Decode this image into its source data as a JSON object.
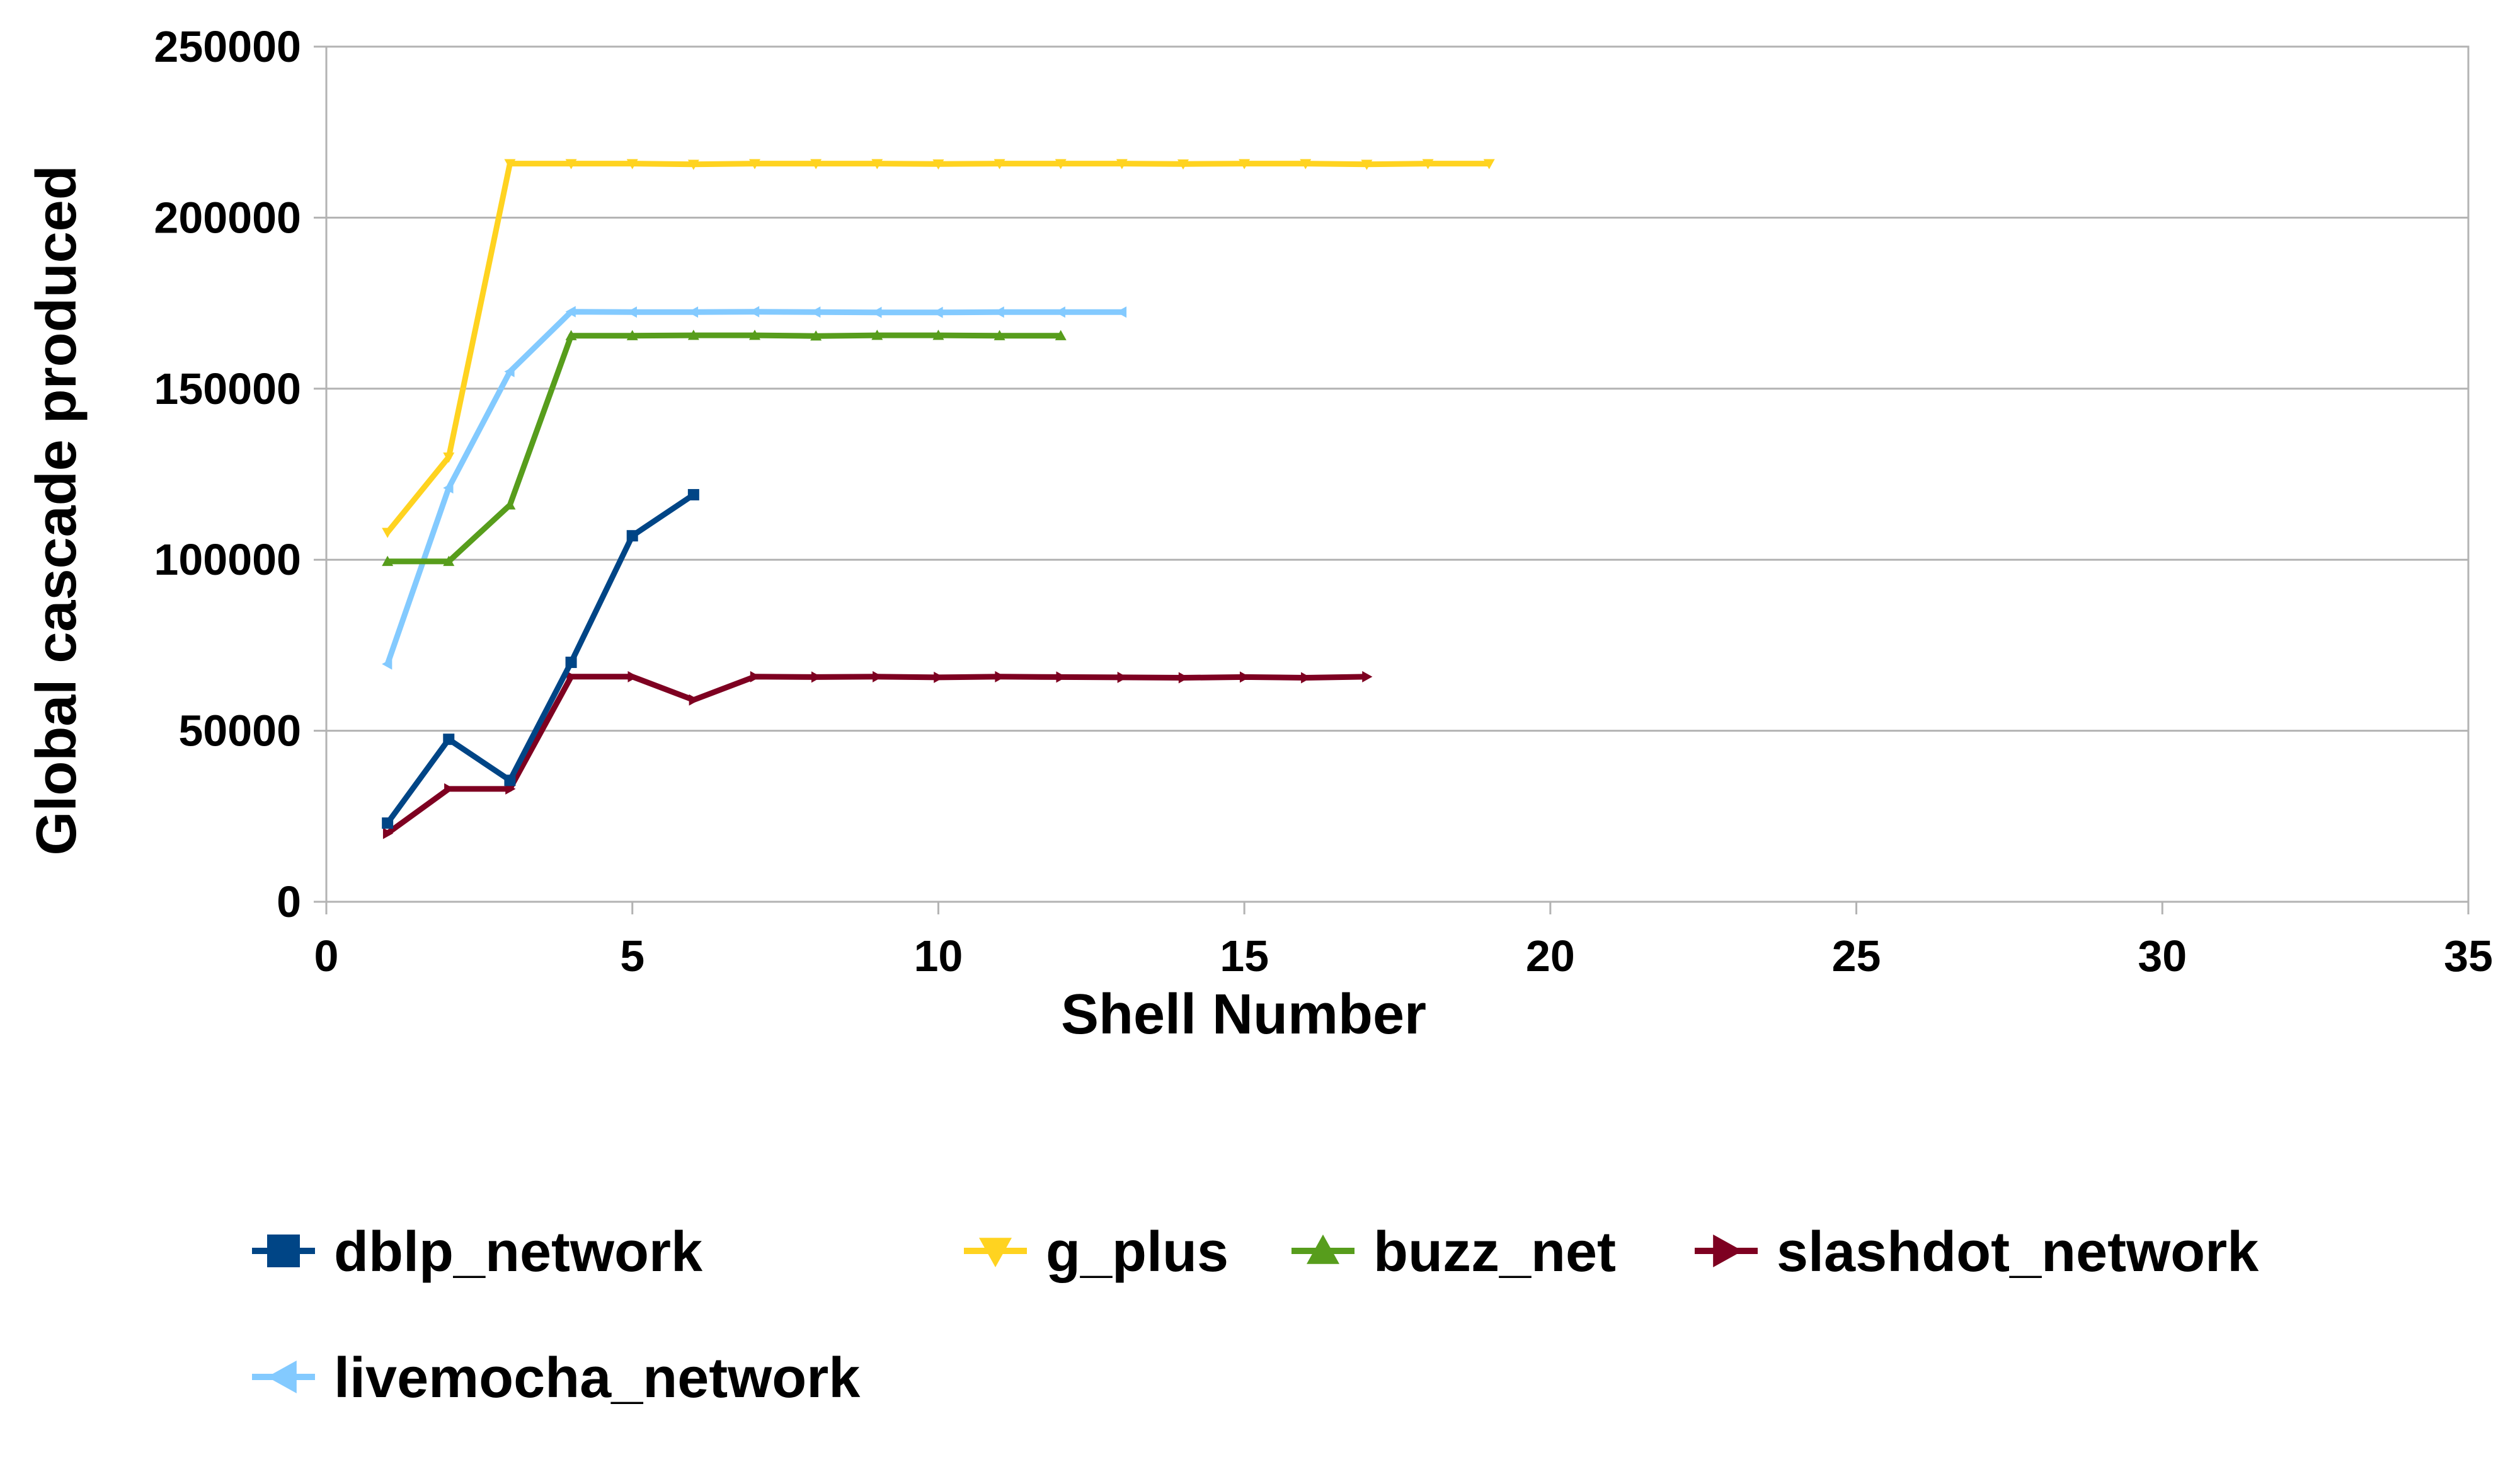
{
  "chart_data": {
    "type": "line",
    "title": "",
    "xlabel": "Shell Number",
    "ylabel": "Global cascade produced",
    "xlim": [
      0,
      35
    ],
    "ylim": [
      0,
      250000
    ],
    "xticks": [
      0,
      5,
      10,
      15,
      20,
      25,
      30,
      35
    ],
    "yticks": [
      0,
      50000,
      100000,
      150000,
      200000,
      250000
    ],
    "grid": "horizontal",
    "legend_position": "bottom",
    "series": [
      {
        "name": "dblp_network",
        "color": "#004586",
        "marker": "square",
        "x": [
          1,
          2,
          3,
          4,
          5,
          6
        ],
        "y": [
          23000,
          47500,
          35500,
          70000,
          107000,
          119000
        ]
      },
      {
        "name": "g_plus",
        "color": "#ffd320",
        "marker": "triangle-down",
        "x": [
          1,
          2,
          3,
          4,
          5,
          6,
          7,
          8,
          9,
          10,
          11,
          12,
          13,
          14,
          15,
          16,
          17,
          18,
          19
        ],
        "y": [
          108000,
          130000,
          215800,
          215800,
          215800,
          215600,
          215800,
          215800,
          215800,
          215700,
          215800,
          215800,
          215800,
          215700,
          215800,
          215800,
          215600,
          215800,
          215800
        ]
      },
      {
        "name": "buzz_net",
        "color": "#579d1c",
        "marker": "triangle-up",
        "x": [
          1,
          2,
          3,
          4,
          5,
          6,
          7,
          8,
          9,
          10,
          11,
          12
        ],
        "y": [
          99500,
          99500,
          116000,
          165500,
          165500,
          165600,
          165600,
          165400,
          165600,
          165600,
          165500,
          165500
        ]
      },
      {
        "name": "slashdot_network",
        "color": "#7e0021",
        "marker": "triangle-right",
        "x": [
          1,
          2,
          3,
          4,
          5,
          6,
          7,
          8,
          9,
          10,
          11,
          12,
          13,
          14,
          15,
          16,
          17
        ],
        "y": [
          20000,
          33000,
          33000,
          65800,
          65800,
          59000,
          65800,
          65700,
          65800,
          65600,
          65800,
          65700,
          65600,
          65500,
          65700,
          65500,
          65800
        ]
      },
      {
        "name": "livemocha_network",
        "color": "#83caff",
        "marker": "triangle-left",
        "x": [
          1,
          2,
          3,
          4,
          5,
          6,
          7,
          8,
          9,
          10,
          11,
          12,
          13
        ],
        "y": [
          69500,
          121000,
          155000,
          172500,
          172400,
          172400,
          172500,
          172400,
          172300,
          172300,
          172400,
          172400,
          172400
        ]
      }
    ]
  }
}
